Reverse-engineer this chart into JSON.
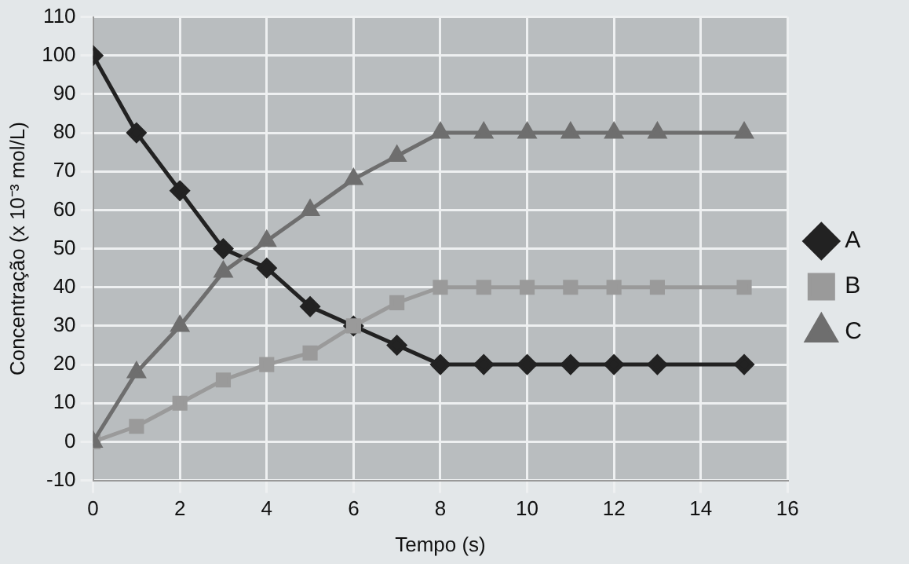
{
  "chart_data": {
    "type": "line",
    "xlabel": "Tempo (s)",
    "ylabel": "Concentração (x 10⁻³ mol/L)",
    "xlim": [
      0,
      16
    ],
    "xticks": [
      0,
      2,
      4,
      6,
      8,
      10,
      12,
      14,
      16
    ],
    "ylim": [
      -10,
      110
    ],
    "yticks": [
      -10,
      0,
      10,
      20,
      30,
      40,
      50,
      60,
      70,
      80,
      90,
      100,
      110
    ],
    "grid": true,
    "legend": "right",
    "line_style": "solid",
    "x": [
      0,
      1,
      2,
      3,
      4,
      5,
      6,
      7,
      8,
      9,
      10,
      11,
      12,
      13,
      15
    ],
    "series": [
      {
        "name": "A",
        "color": "#222222",
        "marker": "diamond",
        "values": [
          100,
          80,
          65,
          50,
          45,
          35,
          30,
          25,
          20,
          20,
          20,
          20,
          20,
          20,
          20
        ]
      },
      {
        "name": "B",
        "color": "#9a9a9a",
        "marker": "square",
        "values": [
          0,
          4,
          10,
          16,
          20,
          23,
          30,
          36,
          40,
          40,
          40,
          40,
          40,
          40,
          40
        ]
      },
      {
        "name": "C",
        "color": "#6e6e6e",
        "marker": "triangle",
        "values": [
          0,
          18,
          30,
          44,
          52,
          60,
          68,
          74,
          80,
          80,
          80,
          80,
          80,
          80,
          80
        ]
      }
    ]
  }
}
